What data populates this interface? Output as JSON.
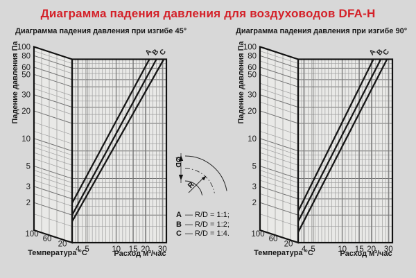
{
  "title": "Диаграмма падения давления для воздуховодов DFA-H",
  "colors": {
    "title": "#d42129",
    "background": "#d8d8d8",
    "panel": "#e9e9e7",
    "grid_minor": "#9f9f9f",
    "grid_major": "#6f6f6f",
    "edge": "#111111",
    "series_line": "#161616",
    "text": "#1a1a1a"
  },
  "legend": {
    "items": [
      {
        "letter": "A",
        "text": "— R/D = 1:1;"
      },
      {
        "letter": "B",
        "text": "— R/D = 1:2;"
      },
      {
        "letter": "C",
        "text": "— R/D = 1:4."
      }
    ]
  },
  "bend_diagram": {
    "diameter_label": "ØD",
    "radius_label": "R"
  },
  "chart_data": [
    {
      "type": "line",
      "subtitle": "Диаграмма падения давления при изгибе 45°",
      "ylabel": "Падение давления Па",
      "xlabel": "Расход м³/час",
      "zlabel": "Температура °C",
      "xlim": [
        3.5,
        33
      ],
      "ylim": [
        1,
        100
      ],
      "x_ticks": [
        4,
        5,
        10,
        15,
        20,
        30
      ],
      "y_ticks": [
        100,
        80,
        60,
        50,
        30,
        20,
        10,
        5,
        3,
        2
      ],
      "temp_ticks": [
        100,
        60,
        20
      ],
      "series": [
        {
          "name": "A",
          "points": [
            [
              3.5,
              2.7
            ],
            [
              22,
              100
            ]
          ]
        },
        {
          "name": "B",
          "points": [
            [
              3.5,
              2.0
            ],
            [
              26,
              100
            ]
          ]
        },
        {
          "name": "C",
          "points": [
            [
              3.5,
              1.7
            ],
            [
              31,
              100
            ]
          ]
        }
      ]
    },
    {
      "type": "line",
      "subtitle": "Диаграмма падения давления при изгибе 90°",
      "ylabel": "Падение давления Па",
      "xlabel": "Расход м³/час",
      "zlabel": "Температура °C",
      "xlim": [
        3.5,
        33
      ],
      "ylim": [
        1,
        100
      ],
      "x_ticks": [
        4,
        5,
        10,
        15,
        20,
        30
      ],
      "y_ticks": [
        100,
        80,
        60,
        50,
        30,
        20,
        10,
        5,
        3,
        2
      ],
      "temp_ticks": [
        100,
        60,
        20
      ],
      "series": [
        {
          "name": "A",
          "points": [
            [
              3.5,
              2.2
            ],
            [
              21,
              100
            ]
          ]
        },
        {
          "name": "B",
          "points": [
            [
              3.5,
              1.7
            ],
            [
              25,
              100
            ]
          ]
        },
        {
          "name": "C",
          "points": [
            [
              3.5,
              1.3
            ],
            [
              29,
              100
            ]
          ]
        }
      ]
    }
  ]
}
